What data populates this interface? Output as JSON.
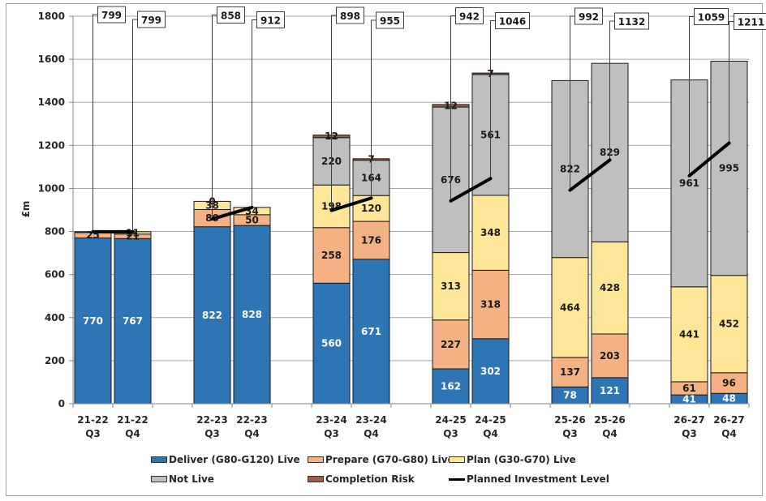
{
  "chart_data": {
    "type": "bar",
    "stacked": true,
    "title": "",
    "xlabel": "",
    "ylabel": "£m",
    "ylim": [
      0,
      1800
    ],
    "yticks": [
      0,
      200,
      400,
      600,
      800,
      1000,
      1200,
      1400,
      1600,
      1800
    ],
    "grid": true,
    "legend_position": "bottom",
    "categories": [
      {
        "year": "21-22",
        "quarter": "Q3"
      },
      {
        "year": "21-22",
        "quarter": "Q4"
      },
      {
        "year": "22-23",
        "quarter": "Q3"
      },
      {
        "year": "22-23",
        "quarter": "Q4"
      },
      {
        "year": "23-24",
        "quarter": "Q3"
      },
      {
        "year": "23-24",
        "quarter": "Q4"
      },
      {
        "year": "24-25",
        "quarter": "Q3"
      },
      {
        "year": "24-25",
        "quarter": "Q4"
      },
      {
        "year": "25-26",
        "quarter": "Q3"
      },
      {
        "year": "25-26",
        "quarter": "Q4"
      },
      {
        "year": "26-27",
        "quarter": "Q3"
      },
      {
        "year": "26-27",
        "quarter": "Q4"
      }
    ],
    "series": [
      {
        "name": "Deliver (G80-G120) Live",
        "color": "#2e75b6",
        "label_color": "#ffffff",
        "values": [
          770,
          767,
          822,
          828,
          560,
          671,
          162,
          302,
          78,
          121,
          41,
          48
        ],
        "labels": [
          "770",
          "767",
          "822",
          "828",
          "560",
          "671",
          "162",
          "302",
          "78",
          "121",
          "41",
          "48"
        ]
      },
      {
        "name": "Prepare (G70-G80) Live",
        "color": "#f4b183",
        "label_color": "#1a1a1a",
        "values": [
          25,
          21,
          80,
          50,
          258,
          176,
          227,
          318,
          137,
          203,
          61,
          96
        ],
        "labels": [
          "25",
          "21",
          "80",
          "50",
          "258",
          "176",
          "227",
          "318",
          "137",
          "203",
          "61",
          "96"
        ]
      },
      {
        "name": "Plan (G30-G70) Live",
        "color": "#ffe699",
        "label_color": "#1a1a1a",
        "values": [
          4,
          11,
          38,
          34,
          198,
          120,
          313,
          348,
          464,
          428,
          441,
          452
        ],
        "labels": [
          "",
          "11",
          "38",
          "34",
          "198",
          "120",
          "313",
          "348",
          "464",
          "428",
          "441",
          "452"
        ]
      },
      {
        "name": "Not Live",
        "color": "#bfbfbf",
        "label_color": "#1a1a1a",
        "values": [
          0,
          0,
          0,
          0,
          220,
          164,
          676,
          561,
          822,
          829,
          961,
          995
        ],
        "labels": [
          "",
          "",
          "0",
          "",
          "220",
          "164",
          "676",
          "561",
          "822",
          "829",
          "961",
          "995"
        ]
      },
      {
        "name": "Completion Risk",
        "color": "#996047",
        "label_color": "#1a1a1a",
        "values": [
          0,
          0,
          0,
          0,
          12,
          7,
          12,
          7,
          0,
          0,
          0,
          0
        ],
        "labels": [
          "",
          "",
          "",
          "",
          "12",
          "7",
          "12",
          "7",
          "",
          "",
          "",
          ""
        ]
      }
    ],
    "line_series": {
      "name": "Planned Investment Level",
      "color": "#000000",
      "values": [
        799,
        799,
        858,
        912,
        898,
        955,
        942,
        1046,
        992,
        1132,
        1059,
        1211
      ],
      "labels": [
        "799",
        "799",
        "858",
        "912",
        "898",
        "955",
        "942",
        "1046",
        "992",
        "1132",
        "1059",
        "1211"
      ]
    }
  },
  "legend": {
    "items": [
      {
        "label": "Deliver (G80-G120) Live",
        "color": "#2e75b6",
        "kind": "box"
      },
      {
        "label": "Prepare (G70-G80) Live",
        "color": "#f4b183",
        "kind": "box"
      },
      {
        "label": "Plan (G30-G70) Live",
        "color": "#ffe699",
        "kind": "box"
      },
      {
        "label": "Not Live",
        "color": "#bfbfbf",
        "kind": "box"
      },
      {
        "label": "Completion Risk",
        "color": "#996047",
        "kind": "box"
      },
      {
        "label": "Planned Investment Level",
        "color": "#000000",
        "kind": "line"
      }
    ]
  }
}
